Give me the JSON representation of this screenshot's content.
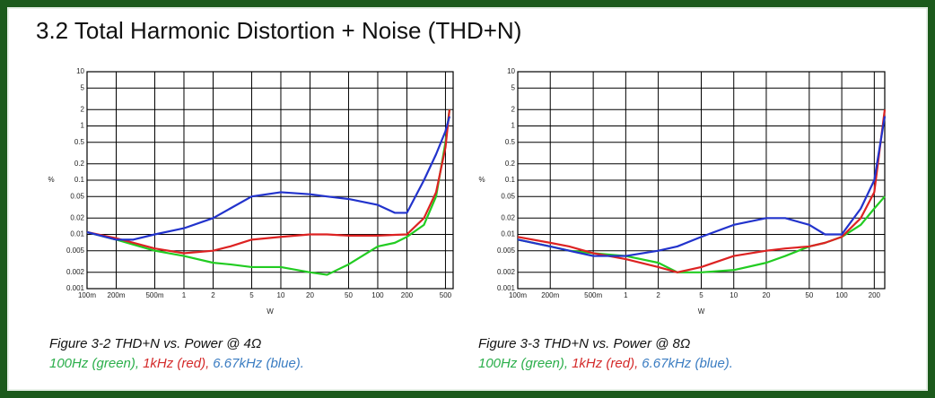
{
  "header": {
    "title": "3.2 Total Harmonic Distortion + Noise (THD+N)"
  },
  "chart_data": [
    {
      "type": "line",
      "caption": "Figure 3-2 THD+N vs. Power @ 4Ω",
      "xlabel": "W",
      "ylabel": "%",
      "xscale": "log",
      "yscale": "log",
      "grid": true,
      "xlim": [
        0.1,
        600
      ],
      "ylim": [
        0.001,
        10
      ],
      "xticks": [
        {
          "value": 0.1,
          "label": "100m"
        },
        {
          "value": 0.2,
          "label": "200m"
        },
        {
          "value": 0.5,
          "label": "500m"
        },
        1,
        2,
        5,
        10,
        20,
        50,
        100,
        200,
        500
      ],
      "yticks": [
        10,
        5,
        2,
        1,
        0.5,
        0.2,
        0.1,
        0.05,
        0.02,
        0.01,
        0.005,
        0.002,
        0.001
      ],
      "x": [
        0.1,
        0.2,
        0.3,
        0.5,
        1,
        2,
        3,
        5,
        10,
        20,
        30,
        50,
        100,
        150,
        200,
        300,
        400,
        500,
        550
      ],
      "series": [
        {
          "name": "100Hz (green),",
          "color": "#22cc22",
          "legend_color": "#2aae4a",
          "values": [
            0.011,
            0.008,
            0.0065,
            0.005,
            0.004,
            0.003,
            0.0028,
            0.0025,
            0.0025,
            0.002,
            0.0018,
            0.0028,
            0.006,
            0.007,
            0.009,
            0.015,
            0.05,
            0.5,
            2
          ]
        },
        {
          "name": "1kHz (red),",
          "color": "#dd2222",
          "legend_color": "#d42a2a",
          "values": [
            0.011,
            0.0085,
            0.007,
            0.0055,
            0.0045,
            0.005,
            0.006,
            0.008,
            0.009,
            0.01,
            0.01,
            0.0095,
            0.0095,
            0.0098,
            0.01,
            0.02,
            0.06,
            0.4,
            2
          ]
        },
        {
          "name": "6.67kHz (blue).",
          "color": "#2233cc",
          "legend_color": "#3b7dc2",
          "values": [
            0.011,
            0.008,
            0.008,
            0.01,
            0.013,
            0.02,
            0.03,
            0.05,
            0.06,
            0.055,
            0.05,
            0.045,
            0.035,
            0.025,
            0.025,
            0.1,
            0.3,
            0.8,
            1.5
          ]
        }
      ]
    },
    {
      "type": "line",
      "caption": "Figure 3-3 THD+N vs. Power @ 8Ω",
      "xlabel": "W",
      "ylabel": "%",
      "xscale": "log",
      "yscale": "log",
      "grid": true,
      "xlim": [
        0.1,
        250
      ],
      "ylim": [
        0.001,
        10
      ],
      "xticks": [
        {
          "value": 0.1,
          "label": "100m"
        },
        {
          "value": 0.2,
          "label": "200m"
        },
        {
          "value": 0.5,
          "label": "500m"
        },
        1,
        2,
        5,
        10,
        20,
        50,
        100,
        200
      ],
      "yticks": [
        10,
        5,
        2,
        1,
        0.5,
        0.2,
        0.1,
        0.05,
        0.02,
        0.01,
        0.005,
        0.002,
        0.001
      ],
      "x": [
        0.1,
        0.2,
        0.3,
        0.5,
        1,
        2,
        3,
        5,
        10,
        20,
        30,
        50,
        70,
        100,
        150,
        200,
        250
      ],
      "series": [
        {
          "name": "100Hz (green),",
          "color": "#22cc22",
          "legend_color": "#2aae4a",
          "values": [
            0.008,
            0.006,
            0.005,
            0.0045,
            0.004,
            0.003,
            0.002,
            0.002,
            0.0022,
            0.003,
            0.004,
            0.006,
            0.007,
            0.009,
            0.015,
            0.03,
            0.05
          ]
        },
        {
          "name": "1kHz (red),",
          "color": "#dd2222",
          "legend_color": "#d42a2a",
          "values": [
            0.009,
            0.007,
            0.006,
            0.0045,
            0.0035,
            0.0025,
            0.002,
            0.0025,
            0.004,
            0.005,
            0.0055,
            0.006,
            0.007,
            0.009,
            0.02,
            0.06,
            2
          ]
        },
        {
          "name": "6.67kHz (blue).",
          "color": "#2233cc",
          "legend_color": "#3b7dc2",
          "values": [
            0.008,
            0.006,
            0.005,
            0.004,
            0.004,
            0.005,
            0.006,
            0.009,
            0.015,
            0.02,
            0.02,
            0.015,
            0.01,
            0.01,
            0.03,
            0.1,
            1.5
          ]
        }
      ]
    }
  ]
}
